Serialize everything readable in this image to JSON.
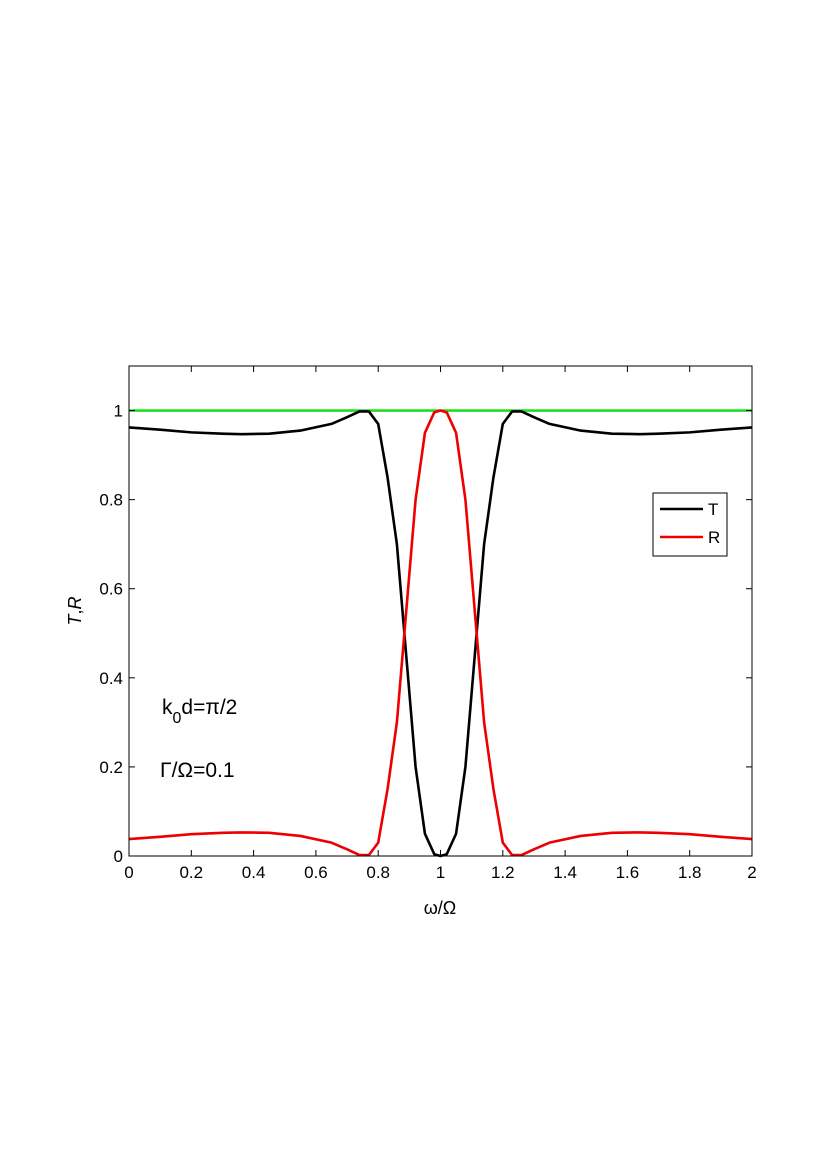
{
  "chart_data": {
    "type": "line",
    "title": "",
    "xlabel": "ω/Ω",
    "ylabel_main": "T",
    "ylabel_sep": ",",
    "ylabel_second": "R",
    "xlim": [
      0,
      2
    ],
    "ylim": [
      0,
      1.1
    ],
    "xticks": [
      0,
      0.2,
      0.4,
      0.6,
      0.8,
      1,
      1.2,
      1.4,
      1.6,
      1.8,
      2
    ],
    "xtick_labels": [
      "0",
      "0.2",
      "0.4",
      "0.6",
      "0.8",
      "1",
      "1.2",
      "1.4",
      "1.6",
      "1.8",
      "2"
    ],
    "yticks": [
      0,
      0.2,
      0.4,
      0.6,
      0.8,
      1
    ],
    "ytick_labels": [
      "0",
      "0.2",
      "0.4",
      "0.6",
      "0.8",
      "1"
    ],
    "grid": false,
    "legend_position": "right",
    "series": [
      {
        "name": "T",
        "color": "#000000",
        "x": [
          0,
          0.1,
          0.2,
          0.3,
          0.36,
          0.45,
          0.55,
          0.65,
          0.7,
          0.74,
          0.77,
          0.8,
          0.83,
          0.86,
          0.89,
          0.92,
          0.95,
          0.98,
          1.0,
          1.02,
          1.05,
          1.08,
          1.11,
          1.14,
          1.17,
          1.2,
          1.23,
          1.26,
          1.3,
          1.35,
          1.45,
          1.55,
          1.64,
          1.7,
          1.8,
          1.9,
          2.0
        ],
        "y": [
          0.962,
          0.957,
          0.951,
          0.948,
          0.947,
          0.948,
          0.955,
          0.97,
          0.985,
          0.998,
          0.998,
          0.97,
          0.85,
          0.7,
          0.45,
          0.2,
          0.05,
          0.004,
          0.0,
          0.004,
          0.05,
          0.2,
          0.45,
          0.7,
          0.85,
          0.97,
          0.998,
          0.998,
          0.985,
          0.97,
          0.955,
          0.948,
          0.947,
          0.948,
          0.951,
          0.957,
          0.962
        ]
      },
      {
        "name": "R",
        "color": "#ee0000",
        "x": [
          0,
          0.1,
          0.2,
          0.3,
          0.36,
          0.45,
          0.55,
          0.65,
          0.7,
          0.74,
          0.77,
          0.8,
          0.83,
          0.86,
          0.89,
          0.92,
          0.95,
          0.98,
          1.0,
          1.02,
          1.05,
          1.08,
          1.11,
          1.14,
          1.17,
          1.2,
          1.23,
          1.26,
          1.3,
          1.35,
          1.45,
          1.55,
          1.64,
          1.7,
          1.8,
          1.9,
          2.0
        ],
        "y": [
          0.038,
          0.043,
          0.049,
          0.052,
          0.053,
          0.052,
          0.045,
          0.03,
          0.015,
          0.002,
          0.002,
          0.03,
          0.15,
          0.3,
          0.55,
          0.8,
          0.95,
          0.996,
          1.0,
          0.996,
          0.95,
          0.8,
          0.55,
          0.3,
          0.15,
          0.03,
          0.002,
          0.002,
          0.015,
          0.03,
          0.045,
          0.052,
          0.053,
          0.052,
          0.049,
          0.043,
          0.038
        ]
      },
      {
        "name": "",
        "color": "#22dd22",
        "x": [
          0,
          2
        ],
        "y": [
          1.0,
          1.0
        ]
      }
    ],
    "annotations": {
      "k_base": "k",
      "k_sub": "0",
      "k_rest": "d=π/2",
      "gamma": "Γ/Ω=0.1"
    }
  }
}
